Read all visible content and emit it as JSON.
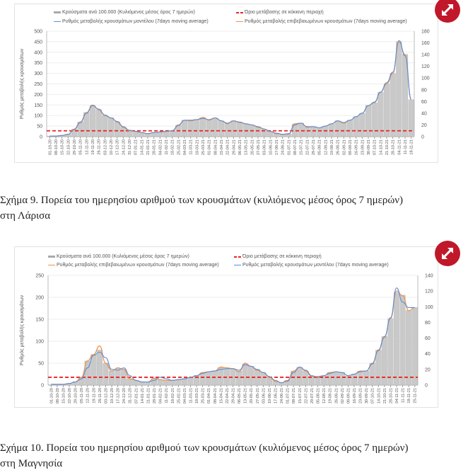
{
  "figures": [
    {
      "caption_line1": "Σχήμα 9. Πορεία του ημερησίου αριθμού των κρουσμάτων (κυλιόμενος μέσος όρος 7 ημερών)",
      "caption_line2": "στη Λάρισα",
      "expand_icon": "expand-arrows-icon",
      "legend": {
        "bars": "Κρούσματα ανά 100.000 (Κυλιόμενος μέσος όρος 7 ημερών)",
        "threshold": "Όριο μετάβασης σε κόκκινη περιοχή",
        "model": "Ρυθμός μεταβολής κρουσμάτων μοντέλου (7days moving average)",
        "confirmed": "Ρυθμός μεταβολής επιβεβαιωμένων κρουσμάτων (7days moving average)"
      },
      "chart_data": {
        "type": "bar+line",
        "ylabel": "Ρυθμός μεταβολής κρουσμάτων",
        "ylim_left": [
          0,
          500
        ],
        "yticks_left": [
          0,
          50,
          100,
          150,
          200,
          250,
          300,
          350,
          400,
          450,
          500
        ],
        "ylim_right": [
          0,
          180
        ],
        "yticks_right": [
          0,
          20,
          40,
          60,
          80,
          100,
          120,
          140,
          160,
          180
        ],
        "threshold_right": 10,
        "grid": true,
        "colors": {
          "bars": "#c9c9c9",
          "model": "#5b8fd6",
          "confirmed": "#f0904a",
          "threshold": "#ee2222"
        },
        "categories": [
          "01-10-20",
          "08-10-20",
          "15-10-20",
          "22-10-20",
          "29-10-20",
          "05-11-20",
          "12-11-20",
          "19-11-20",
          "26-11-20",
          "03-12-20",
          "10-12-20",
          "17-12-20",
          "24-12-20",
          "31-12-20",
          "07-01-21",
          "14-01-21",
          "21-01-21",
          "28-01-21",
          "04-02-21",
          "11-02-21",
          "18-02-21",
          "25-02-21",
          "04-03-21",
          "11-03-21",
          "18-03-21",
          "25-03-21",
          "01-04-21",
          "08-04-21",
          "15-04-21",
          "22-04-21",
          "29-04-21",
          "06-05-21",
          "13-05-21",
          "20-05-21",
          "27-05-21",
          "03-06-21",
          "10-06-21",
          "17-06-21",
          "24-06-21",
          "01-07-21",
          "08-07-21",
          "15-07-21",
          "22-07-21",
          "29-07-21",
          "05-08-21",
          "12-08-21",
          "19-08-21",
          "26-08-21",
          "02-09-21",
          "09-09-21",
          "16-09-21",
          "23-09-21",
          "30-09-21",
          "07-10-21",
          "14-10-21",
          "21-10-21",
          "28-10-21",
          "04-11-21",
          "11-11-21",
          "18-11-21"
        ],
        "bars_left": [
          3,
          3,
          6,
          12,
          35,
          70,
          115,
          148,
          128,
          100,
          90,
          70,
          45,
          28,
          25,
          20,
          15,
          20,
          22,
          25,
          27,
          55,
          78,
          76,
          82,
          90,
          78,
          88,
          75,
          62,
          75,
          68,
          60,
          55,
          45,
          35,
          25,
          15,
          10,
          12,
          60,
          65,
          45,
          48,
          42,
          50,
          60,
          75,
          65,
          78,
          95,
          110,
          148,
          160,
          210,
          250,
          300,
          450,
          390,
          175
        ],
        "model_right": [
          1,
          1,
          2,
          4,
          12,
          24,
          40,
          53,
          47,
          37,
          32,
          26,
          17,
          11,
          9,
          7,
          5,
          7,
          8,
          9,
          10,
          19,
          28,
          28,
          29,
          31,
          29,
          32,
          27,
          23,
          27,
          25,
          22,
          20,
          17,
          13,
          9,
          6,
          4,
          5,
          20,
          23,
          17,
          17,
          15,
          18,
          22,
          27,
          24,
          28,
          34,
          40,
          53,
          59,
          76,
          92,
          110,
          164,
          138,
          63
        ],
        "confirmed_right": [
          1,
          1,
          2,
          4,
          13,
          25,
          41,
          54,
          46,
          36,
          32,
          25,
          16,
          10,
          9,
          7,
          5,
          7,
          8,
          9,
          10,
          20,
          28,
          27,
          29,
          33,
          28,
          32,
          27,
          22,
          27,
          24,
          22,
          20,
          16,
          13,
          9,
          5,
          4,
          4,
          22,
          23,
          16,
          17,
          15,
          18,
          22,
          27,
          23,
          28,
          34,
          40,
          53,
          58,
          76,
          90,
          108,
          162,
          140,
          65
        ]
      }
    },
    {
      "caption_line1": "Σχήμα 10. Πορεία του ημερησίου αριθμού των κρουσμάτων (κυλιόμενος μέσος όρος 7 ημερών)",
      "caption_line2": "στη Μαγνησία",
      "expand_icon": "expand-arrows-icon",
      "legend": {
        "bars": "Κρούσματα ανά 100.000 (Κυλιόμενος μέσος όρος 7 ημερών)",
        "threshold": "Όριο μετάβασης σε κόκκινη περιοχή",
        "confirmed": "Ρυθμός μεταβολής επιβεβαιωμένων κρουσμάτων (7days moving average)",
        "model": "Ρυθμός μεταβολής κρουσμάτων μοντέλου (7days moving average)"
      },
      "chart_data": {
        "type": "bar+line",
        "ylabel": "Ρυθμός μεταβολής κρουσμάτων",
        "ylim_left": [
          0,
          250
        ],
        "yticks_left": [
          0,
          50,
          100,
          150,
          200,
          250
        ],
        "ylim_right": [
          0,
          140
        ],
        "yticks_right": [
          0,
          20,
          40,
          60,
          80,
          100,
          120,
          140
        ],
        "threshold_right": 10,
        "grid": true,
        "colors": {
          "bars": "#c9c9c9",
          "model": "#5b8fd6",
          "confirmed": "#f0904a",
          "threshold": "#ee2222"
        },
        "categories": [
          "01-10-20",
          "08-10-20",
          "15-10-20",
          "22-10-20",
          "29-10-20",
          "05-11-20",
          "12-11-20",
          "19-11-20",
          "26-11-20",
          "03-12-20",
          "10-12-20",
          "17-12-20",
          "24-12-20",
          "31-12-20",
          "07-01-21",
          "14-01-21",
          "21-01-21",
          "28-01-21",
          "04-02-21",
          "11-02-21",
          "18-02-21",
          "25-02-21",
          "04-03-21",
          "11-03-21",
          "18-03-21",
          "25-03-21",
          "01-04-21",
          "08-04-21",
          "15-04-21",
          "22-04-21",
          "29-04-21",
          "06-05-21",
          "13-05-21",
          "20-05-21",
          "27-05-21",
          "03-06-21",
          "10-06-21",
          "17-06-21",
          "24-06-21",
          "01-07-21",
          "08-07-21",
          "15-07-21",
          "22-07-21",
          "29-07-21",
          "05-08-21",
          "12-08-21",
          "19-08-21",
          "26-08-21",
          "02-09-21",
          "09-09-21",
          "16-09-21",
          "23-09-21",
          "30-09-21",
          "07-10-21",
          "14-10-21",
          "21-10-21",
          "28-10-21",
          "04-11-21",
          "11-11-21",
          "18-11-21",
          "25-11-21"
        ],
        "bars_left": [
          1,
          2,
          2,
          4,
          8,
          18,
          55,
          70,
          80,
          50,
          32,
          38,
          35,
          15,
          10,
          8,
          7,
          15,
          12,
          10,
          10,
          12,
          14,
          17,
          22,
          28,
          30,
          33,
          40,
          38,
          37,
          32,
          48,
          43,
          36,
          29,
          18,
          9,
          5,
          11,
          32,
          41,
          32,
          20,
          20,
          21,
          29,
          30,
          29,
          21,
          25,
          32,
          32,
          50,
          80,
          111,
          152,
          211,
          205,
          170,
          177
        ],
        "model_right": [
          1,
          1,
          1,
          2,
          4,
          8,
          22,
          38,
          42,
          35,
          20,
          19,
          22,
          12,
          6,
          4,
          4,
          6,
          10,
          8,
          6,
          7,
          8,
          10,
          12,
          15,
          17,
          18,
          20,
          21,
          21,
          19,
          26,
          24,
          20,
          16,
          11,
          6,
          3,
          5,
          16,
          23,
          19,
          12,
          10,
          12,
          15,
          17,
          16,
          12,
          14,
          17,
          18,
          27,
          44,
          61,
          86,
          124,
          106,
          99,
          99
        ],
        "confirmed_right": [
          1,
          1,
          1,
          2,
          4,
          10,
          31,
          39,
          50,
          28,
          18,
          22,
          20,
          8,
          6,
          4,
          4,
          9,
          7,
          6,
          6,
          7,
          8,
          10,
          12,
          16,
          17,
          18,
          23,
          22,
          21,
          17,
          28,
          24,
          19,
          16,
          10,
          5,
          3,
          6,
          18,
          23,
          18,
          11,
          11,
          12,
          16,
          17,
          16,
          12,
          14,
          18,
          18,
          28,
          45,
          62,
          85,
          120,
          114,
          95,
          99
        ]
      }
    }
  ]
}
